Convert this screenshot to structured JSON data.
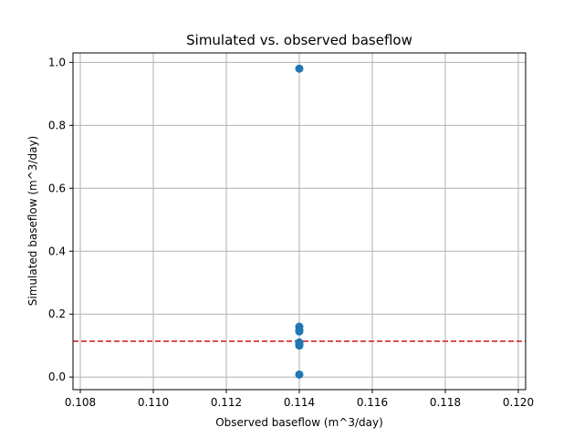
{
  "chart_data": {
    "type": "scatter",
    "title": "Simulated vs. observed baseflow",
    "xlabel": "Observed baseflow (m^3/day)",
    "ylabel": "Simulated baseflow (m^3/day)",
    "xlim": [
      0.1078,
      0.1202
    ],
    "ylim": [
      -0.04,
      1.03
    ],
    "x_ticks": [
      0.108,
      0.11,
      0.112,
      0.114,
      0.116,
      0.118,
      0.12
    ],
    "x_tick_labels": [
      "0.108",
      "0.110",
      "0.112",
      "0.114",
      "0.116",
      "0.118",
      "0.120"
    ],
    "y_ticks": [
      0.0,
      0.2,
      0.4,
      0.6,
      0.8,
      1.0
    ],
    "y_tick_labels": [
      "0.0",
      "0.2",
      "0.4",
      "0.6",
      "0.8",
      "1.0"
    ],
    "grid": true,
    "series": [
      {
        "x": [
          0.114,
          0.114,
          0.114,
          0.114,
          0.114,
          0.114,
          0.114,
          0.114
        ],
        "y": [
          0.98,
          0.16,
          0.15,
          0.145,
          0.11,
          0.105,
          0.1,
          0.008
        ],
        "color": "#1f77b4"
      }
    ],
    "reference_line": {
      "orientation": "horizontal",
      "y": 0.114,
      "style": "dashed",
      "color": "#d62728"
    }
  }
}
